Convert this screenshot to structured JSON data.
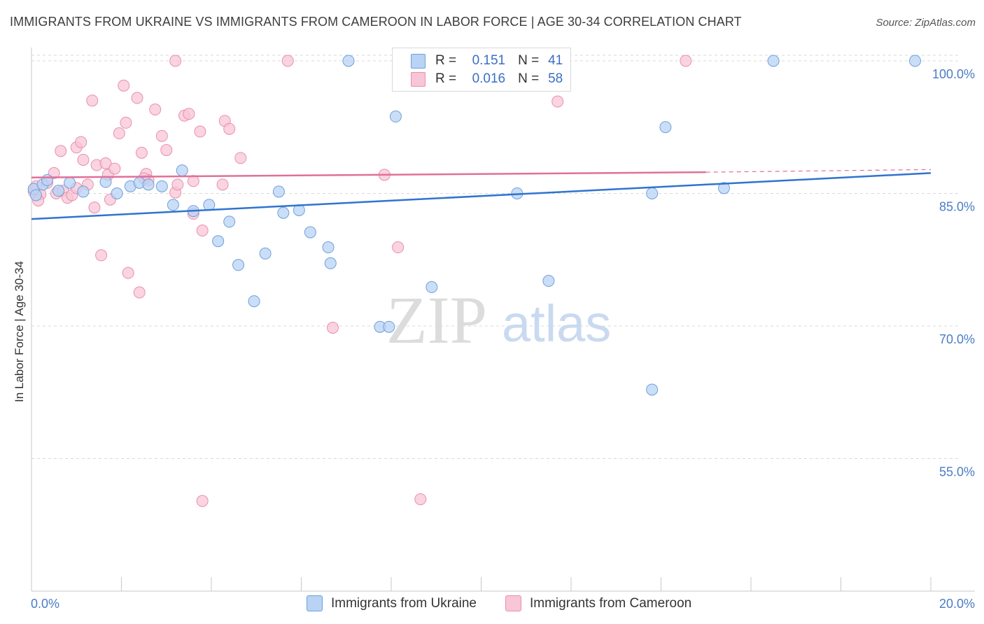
{
  "title": "IMMIGRANTS FROM UKRAINE VS IMMIGRANTS FROM CAMEROON IN LABOR FORCE | AGE 30-34 CORRELATION CHART",
  "source": "Source: ZipAtlas.com",
  "watermark": {
    "zip": "ZIP",
    "atlas": "atlas"
  },
  "legend": {
    "ukraine": {
      "r_label": "R =",
      "r_value": "0.151",
      "n_label": "N =",
      "n_value": "41"
    },
    "cameroon": {
      "r_label": "R =",
      "r_value": "0.016",
      "n_label": "N =",
      "n_value": "58"
    }
  },
  "colors": {
    "ukraine_fill": "#b8d3f4",
    "ukraine_stroke": "#6f9fdc",
    "ukraine_line": "#2f74d0",
    "cameroon_fill": "#f8c6d6",
    "cameroon_stroke": "#e98fae",
    "cameroon_line": "#e0709a",
    "tick_label": "#4a7cc6",
    "grid": "#d8d8d8"
  },
  "chart_data": {
    "type": "scatter",
    "title": "IMMIGRANTS FROM UKRAINE VS IMMIGRANTS FROM CAMEROON IN LABOR FORCE | AGE 30-34 CORRELATION CHART",
    "xlabel": "",
    "ylabel": "In Labor Force | Age 30-34",
    "xlim": [
      0,
      20
    ],
    "ylim": [
      40,
      101.5
    ],
    "x_tick_labels": [
      "0.0%",
      "20.0%"
    ],
    "y_ticks": [
      55,
      70,
      85,
      100
    ],
    "y_tick_labels": [
      "55.0%",
      "70.0%",
      "85.0%",
      "100.0%"
    ],
    "grid": true,
    "series": [
      {
        "name": "Immigrants from Ukraine",
        "points": [
          [
            0.05,
            85.5
          ],
          [
            0.1,
            84.8
          ],
          [
            0.25,
            86.0
          ],
          [
            0.35,
            86.5
          ],
          [
            0.6,
            85.3
          ],
          [
            0.85,
            86.2
          ],
          [
            1.15,
            85.2
          ],
          [
            1.65,
            86.3
          ],
          [
            1.9,
            85.0
          ],
          [
            2.2,
            85.8
          ],
          [
            2.4,
            86.2
          ],
          [
            2.6,
            86.0
          ],
          [
            2.9,
            85.8
          ],
          [
            3.15,
            83.7
          ],
          [
            3.35,
            87.6
          ],
          [
            3.6,
            83.0
          ],
          [
            3.95,
            83.7
          ],
          [
            4.15,
            79.6
          ],
          [
            4.4,
            81.8
          ],
          [
            4.6,
            76.9
          ],
          [
            4.95,
            72.8
          ],
          [
            5.2,
            78.2
          ],
          [
            5.5,
            85.2
          ],
          [
            5.6,
            82.8
          ],
          [
            5.95,
            83.1
          ],
          [
            6.2,
            80.6
          ],
          [
            6.6,
            78.9
          ],
          [
            6.65,
            77.1
          ],
          [
            7.05,
            100.0
          ],
          [
            7.75,
            69.9
          ],
          [
            7.95,
            69.9
          ],
          [
            8.1,
            93.7
          ],
          [
            8.9,
            74.4
          ],
          [
            10.8,
            85.0
          ],
          [
            11.5,
            75.1
          ],
          [
            13.8,
            62.8
          ],
          [
            14.1,
            92.5
          ],
          [
            13.8,
            85.0
          ],
          [
            15.4,
            85.6
          ],
          [
            16.5,
            100.0
          ],
          [
            19.65,
            100.0
          ]
        ]
      },
      {
        "name": "Immigrants from Cameroon",
        "points": [
          [
            0.05,
            85.2
          ],
          [
            0.1,
            85.8
          ],
          [
            0.2,
            84.9
          ],
          [
            0.35,
            86.2
          ],
          [
            0.5,
            87.3
          ],
          [
            0.55,
            85.0
          ],
          [
            0.65,
            89.8
          ],
          [
            0.7,
            85.3
          ],
          [
            0.8,
            84.5
          ],
          [
            0.9,
            84.8
          ],
          [
            1.0,
            90.2
          ],
          [
            1.1,
            90.8
          ],
          [
            1.15,
            88.8
          ],
          [
            1.25,
            86.0
          ],
          [
            1.35,
            95.5
          ],
          [
            1.4,
            83.4
          ],
          [
            1.45,
            88.2
          ],
          [
            1.55,
            78.0
          ],
          [
            1.65,
            88.4
          ],
          [
            1.7,
            87.1
          ],
          [
            1.75,
            84.3
          ],
          [
            1.85,
            87.8
          ],
          [
            1.95,
            91.8
          ],
          [
            2.05,
            97.2
          ],
          [
            2.1,
            93.0
          ],
          [
            2.15,
            76.0
          ],
          [
            2.35,
            95.8
          ],
          [
            2.4,
            73.8
          ],
          [
            2.45,
            89.6
          ],
          [
            2.55,
            87.2
          ],
          [
            2.6,
            86.5
          ],
          [
            2.75,
            94.5
          ],
          [
            2.9,
            91.5
          ],
          [
            3.0,
            89.9
          ],
          [
            3.2,
            85.1
          ],
          [
            3.25,
            86.0
          ],
          [
            3.4,
            93.8
          ],
          [
            3.5,
            94.0
          ],
          [
            3.6,
            82.7
          ],
          [
            3.75,
            92.0
          ],
          [
            3.8,
            80.8
          ],
          [
            3.8,
            50.2
          ],
          [
            3.6,
            86.4
          ],
          [
            2.5,
            86.7
          ],
          [
            4.25,
            86.0
          ],
          [
            4.3,
            93.2
          ],
          [
            4.4,
            92.3
          ],
          [
            4.65,
            89.0
          ],
          [
            3.2,
            100.0
          ],
          [
            5.7,
            100.0
          ],
          [
            6.7,
            69.8
          ],
          [
            7.85,
            87.1
          ],
          [
            8.15,
            78.9
          ],
          [
            8.65,
            50.4
          ],
          [
            11.7,
            95.4
          ],
          [
            14.55,
            100.0
          ],
          [
            0.15,
            84.2
          ],
          [
            1.0,
            85.6
          ]
        ]
      }
    ],
    "trendlines": [
      {
        "series": "Immigrants from Ukraine",
        "x": [
          0,
          20
        ],
        "y": [
          82.1,
          87.3
        ]
      },
      {
        "series": "Immigrants from Cameroon",
        "x": [
          0,
          15.0
        ],
        "y": [
          86.8,
          87.4
        ],
        "dashed_extension_to": [
          20,
          87.7
        ]
      }
    ],
    "legend": [
      "Immigrants from Ukraine",
      "Immigrants from Cameroon"
    ]
  }
}
